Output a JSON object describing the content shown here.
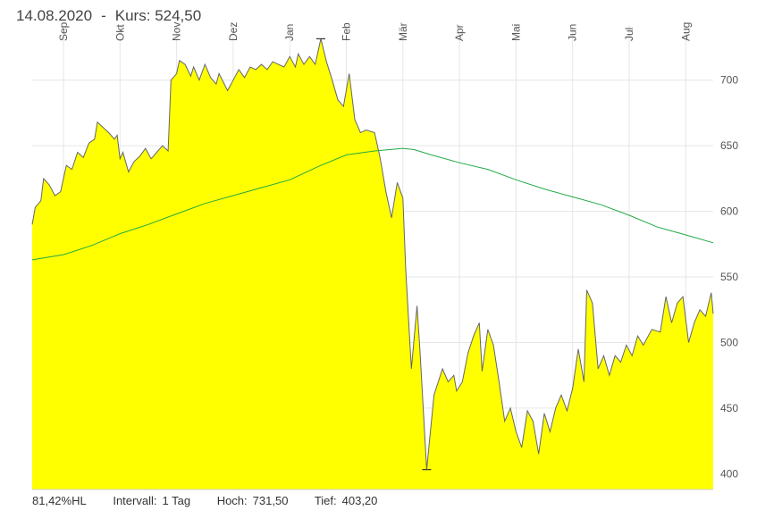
{
  "header": {
    "date": "14.08.2020",
    "separator": "-",
    "kurs_label": "Kurs:",
    "kurs_value": "524,50"
  },
  "footer": {
    "hl_value": "81,42%HL",
    "interval_label": "Intervall:",
    "interval_value": "1 Tag",
    "high_label": "Hoch:",
    "high_value": "731,50",
    "low_label": "Tief:",
    "low_value": "403,20"
  },
  "colors": {
    "area_fill": "#ffff00",
    "price_line": "#666666",
    "ma_line": "#22aa44",
    "grid": "#e6e6e6"
  },
  "chart_data": {
    "type": "area",
    "months": [
      "Sep",
      "Okt",
      "Nov",
      "Dez",
      "Jan",
      "Feb",
      "Mär",
      "Apr",
      "Mai",
      "Jun",
      "Jul",
      "Aug"
    ],
    "y_ticks": [
      400,
      450,
      500,
      550,
      600,
      650,
      700
    ],
    "ylim": [
      388,
      742
    ],
    "grid": true,
    "high_marker": {
      "month_pos": 4.55,
      "value": 731.5
    },
    "low_marker": {
      "month_pos": 6.42,
      "value": 403.2
    },
    "series": [
      {
        "kind": "price",
        "points": [
          [
            -0.6,
            590
          ],
          [
            -0.5,
            603
          ],
          [
            -0.4,
            608
          ],
          [
            -0.35,
            625
          ],
          [
            -0.25,
            620
          ],
          [
            -0.15,
            612
          ],
          [
            -0.05,
            615
          ],
          [
            0.05,
            635
          ],
          [
            0.15,
            632
          ],
          [
            0.25,
            645
          ],
          [
            0.35,
            641
          ],
          [
            0.45,
            652
          ],
          [
            0.55,
            655
          ],
          [
            0.6,
            668
          ],
          [
            0.7,
            664
          ],
          [
            0.8,
            660
          ],
          [
            0.9,
            655
          ],
          [
            0.95,
            658
          ],
          [
            1.0,
            640
          ],
          [
            1.05,
            645
          ],
          [
            1.15,
            630
          ],
          [
            1.25,
            638
          ],
          [
            1.35,
            642
          ],
          [
            1.45,
            648
          ],
          [
            1.55,
            640
          ],
          [
            1.65,
            645
          ],
          [
            1.75,
            650
          ],
          [
            1.85,
            646
          ],
          [
            1.9,
            700
          ],
          [
            2.0,
            705
          ],
          [
            2.05,
            715
          ],
          [
            2.15,
            712
          ],
          [
            2.25,
            703
          ],
          [
            2.3,
            710
          ],
          [
            2.4,
            700
          ],
          [
            2.5,
            712
          ],
          [
            2.6,
            702
          ],
          [
            2.7,
            697
          ],
          [
            2.75,
            705
          ],
          [
            2.9,
            692
          ],
          [
            3.0,
            700
          ],
          [
            3.1,
            708
          ],
          [
            3.2,
            702
          ],
          [
            3.3,
            710
          ],
          [
            3.4,
            708
          ],
          [
            3.5,
            712
          ],
          [
            3.6,
            708
          ],
          [
            3.7,
            714
          ],
          [
            3.8,
            712
          ],
          [
            3.9,
            710
          ],
          [
            4.0,
            718
          ],
          [
            4.1,
            710
          ],
          [
            4.15,
            720
          ],
          [
            4.25,
            712
          ],
          [
            4.35,
            718
          ],
          [
            4.45,
            712
          ],
          [
            4.55,
            731.5
          ],
          [
            4.65,
            714
          ],
          [
            4.75,
            700
          ],
          [
            4.85,
            685
          ],
          [
            4.95,
            680
          ],
          [
            5.05,
            705
          ],
          [
            5.15,
            670
          ],
          [
            5.25,
            660
          ],
          [
            5.35,
            662
          ],
          [
            5.5,
            660
          ],
          [
            5.6,
            640
          ],
          [
            5.7,
            615
          ],
          [
            5.8,
            595
          ],
          [
            5.9,
            622
          ],
          [
            6.0,
            610
          ],
          [
            6.05,
            555
          ],
          [
            6.15,
            480
          ],
          [
            6.25,
            528
          ],
          [
            6.3,
            495
          ],
          [
            6.42,
            403.2
          ],
          [
            6.55,
            460
          ],
          [
            6.7,
            480
          ],
          [
            6.8,
            470
          ],
          [
            6.9,
            475
          ],
          [
            6.95,
            463
          ],
          [
            7.05,
            470
          ],
          [
            7.15,
            492
          ],
          [
            7.25,
            505
          ],
          [
            7.35,
            515
          ],
          [
            7.4,
            478
          ],
          [
            7.5,
            510
          ],
          [
            7.6,
            498
          ],
          [
            7.7,
            470
          ],
          [
            7.8,
            440
          ],
          [
            7.9,
            450
          ],
          [
            8.0,
            432
          ],
          [
            8.1,
            420
          ],
          [
            8.2,
            448
          ],
          [
            8.3,
            440
          ],
          [
            8.4,
            415
          ],
          [
            8.5,
            446
          ],
          [
            8.6,
            432
          ],
          [
            8.7,
            450
          ],
          [
            8.8,
            460
          ],
          [
            8.9,
            448
          ],
          [
            9.0,
            465
          ],
          [
            9.1,
            495
          ],
          [
            9.2,
            470
          ],
          [
            9.25,
            540
          ],
          [
            9.35,
            530
          ],
          [
            9.45,
            480
          ],
          [
            9.55,
            490
          ],
          [
            9.65,
            475
          ],
          [
            9.75,
            490
          ],
          [
            9.85,
            485
          ],
          [
            9.95,
            498
          ],
          [
            10.05,
            490
          ],
          [
            10.15,
            505
          ],
          [
            10.25,
            498
          ],
          [
            10.4,
            510
          ],
          [
            10.55,
            508
          ],
          [
            10.65,
            535
          ],
          [
            10.75,
            515
          ],
          [
            10.85,
            530
          ],
          [
            10.95,
            535
          ],
          [
            11.05,
            500
          ],
          [
            11.15,
            515
          ],
          [
            11.25,
            525
          ],
          [
            11.35,
            520
          ],
          [
            11.45,
            538
          ],
          [
            11.5,
            522
          ]
        ]
      },
      {
        "kind": "moving_average",
        "points": [
          [
            -0.6,
            563
          ],
          [
            0.0,
            567
          ],
          [
            0.5,
            574
          ],
          [
            1.0,
            583
          ],
          [
            1.5,
            590
          ],
          [
            2.0,
            598
          ],
          [
            2.5,
            606
          ],
          [
            3.0,
            612
          ],
          [
            3.5,
            618
          ],
          [
            4.0,
            624
          ],
          [
            4.5,
            634
          ],
          [
            5.0,
            643
          ],
          [
            5.5,
            646
          ],
          [
            6.0,
            648
          ],
          [
            6.2,
            647
          ],
          [
            6.5,
            643
          ],
          [
            7.0,
            637
          ],
          [
            7.5,
            632
          ],
          [
            8.0,
            624
          ],
          [
            8.5,
            617
          ],
          [
            9.0,
            611
          ],
          [
            9.5,
            605
          ],
          [
            10.0,
            597
          ],
          [
            10.5,
            588
          ],
          [
            11.0,
            582
          ],
          [
            11.5,
            576
          ]
        ]
      }
    ]
  }
}
